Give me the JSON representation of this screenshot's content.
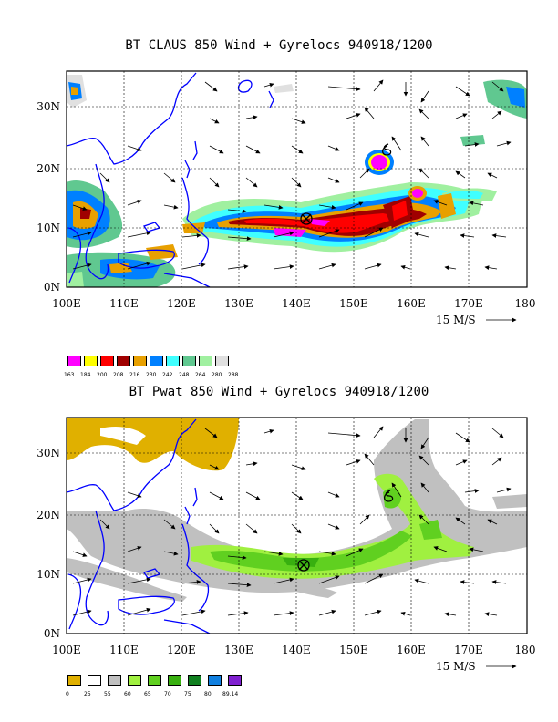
{
  "panels": [
    {
      "title": "BT CLAUS 850 Wind + Gyrelocs 940918/1200",
      "x_ticks": [
        "100E",
        "110E",
        "120E",
        "130E",
        "140E",
        "150E",
        "160E",
        "170E",
        "180"
      ],
      "y_ticks": [
        "0N",
        "10N",
        "20N",
        "30N"
      ],
      "vector_ref": "15 M/S",
      "colorbar": {
        "colors": [
          "#ff00ff",
          "#ffff00",
          "#ff0000",
          "#a00000",
          "#e8a000",
          "#0080ff",
          "#40ffff",
          "#60c890",
          "#a0f0a0",
          "#e0e0e0"
        ],
        "labels": [
          "163",
          "184",
          "200",
          "208",
          "216",
          "230",
          "242",
          "248",
          "264",
          "280",
          "288"
        ]
      }
    },
    {
      "title": "BT Pwat 850 Wind + Gyrelocs 940918/1200",
      "x_ticks": [
        "100E",
        "110E",
        "120E",
        "130E",
        "140E",
        "150E",
        "160E",
        "170E",
        "180"
      ],
      "y_ticks": [
        "0N",
        "10N",
        "20N",
        "30N"
      ],
      "vector_ref": "15 M/S",
      "colorbar": {
        "colors": [
          "#e0b000",
          "#ffffff",
          "#c0c0c0",
          "#a0f040",
          "#60d020",
          "#38b010",
          "#108020",
          "#1080e0",
          "#8020d0"
        ],
        "labels": [
          "0",
          "25",
          "55",
          "60",
          "65",
          "70",
          "75",
          "80",
          "89.14"
        ]
      }
    }
  ],
  "colors": {
    "coast": "#0000ff",
    "frame": "#000000",
    "grid": "#000000"
  }
}
